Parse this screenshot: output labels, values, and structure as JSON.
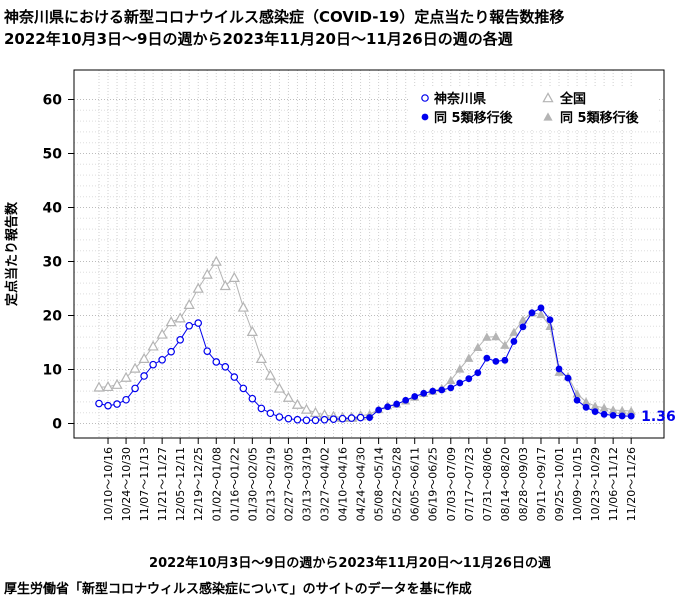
{
  "header": {
    "title_line1": "神奈川県における新型コロナウイルス感染症（COVID-19）定点当たり報告数推移",
    "title_line2": "2022年10月3日～9日の週から2023年11月20日～11月26日の週の各週"
  },
  "footer": {
    "source": "厚生労働省「新型コロナウィルス感染症について」のサイトのデータを基に作成"
  },
  "colors": {
    "kanagawa": "#0000ee",
    "national": "#b4b4b4",
    "grid": "#cfcfcf"
  },
  "chart_data": {
    "type": "line",
    "title": "神奈川県における新型コロナウイルス感染症（COVID-19）定点当たり報告数推移",
    "xlabel": "2022年10月3日～9日の週から2023年11月20日～11月26日の週",
    "ylabel": "定点当たり報告数",
    "ylim": [
      0,
      60
    ],
    "yticks": [
      0,
      10,
      20,
      30,
      40,
      50,
      60
    ],
    "grid": true,
    "legend_position": "top-right",
    "tick_labels": [
      "10/10～10/16",
      "10/24～10/30",
      "11/07～11/13",
      "11/21～11/27",
      "12/05～12/11",
      "12/19～12/25",
      "01/02～01/08",
      "01/16～01/22",
      "01/30～02/05",
      "02/13～02/19",
      "02/27～03/05",
      "03/13～03/19",
      "03/27～04/02",
      "04/10～04/16",
      "04/24～04/30",
      "05/08～05/14",
      "05/22～05/28",
      "06/05～06/11",
      "06/19～06/25",
      "07/03～07/09",
      "07/17～07/23",
      "07/31～08/06",
      "08/14～08/20",
      "08/28～09/03",
      "09/11～09/17",
      "09/25～10/01",
      "10/09～10/15",
      "10/23～10/29",
      "11/06～11/12",
      "11/20～11/26"
    ],
    "x_weeks": [
      "10/03～10/09",
      "10/10～10/16",
      "10/17～10/23",
      "10/24～10/30",
      "10/31～11/06",
      "11/07～11/13",
      "11/14～11/20",
      "11/21～11/27",
      "11/28～12/04",
      "12/05～12/11",
      "12/12～12/18",
      "12/19～12/25",
      "12/26～01/01",
      "01/02～01/08",
      "01/09～01/15",
      "01/16～01/22",
      "01/23～01/29",
      "01/30～02/05",
      "02/06～02/12",
      "02/13～02/19",
      "02/20～02/26",
      "02/27～03/05",
      "03/06～03/12",
      "03/13～03/19",
      "03/20～03/26",
      "03/27～04/02",
      "04/03～04/09",
      "04/10～04/16",
      "04/17～04/23",
      "04/24～04/30",
      "05/01～05/07",
      "05/08～05/14",
      "05/15～05/21",
      "05/22～05/28",
      "05/29～06/04",
      "06/05～06/11",
      "06/12～06/18",
      "06/19～06/25",
      "06/26～07/02",
      "07/03～07/09",
      "07/10～07/16",
      "07/17～07/23",
      "07/24～07/30",
      "07/31～08/06",
      "08/07～08/13",
      "08/14～08/20",
      "08/21～08/27",
      "08/28～09/03",
      "09/04～09/10",
      "09/11～09/17",
      "09/18～09/24",
      "09/25～10/01",
      "10/02～10/08",
      "10/09～10/15",
      "10/16～10/22",
      "10/23～10/29",
      "10/30～11/05",
      "11/06～11/12",
      "11/13～11/19",
      "11/20～11/26"
    ],
    "split_index": 30,
    "series": [
      {
        "name": "神奈川県",
        "name_after": "同 5類移行後",
        "values": [
          3.7,
          3.3,
          3.6,
          4.4,
          6.5,
          8.8,
          10.9,
          11.8,
          13.3,
          15.5,
          18.1,
          18.6,
          13.4,
          11.4,
          10.5,
          8.6,
          6.5,
          4.6,
          2.8,
          1.9,
          1.2,
          0.9,
          0.7,
          0.6,
          0.6,
          0.7,
          0.8,
          0.9,
          1.0,
          1.1,
          1.1,
          2.5,
          3.1,
          3.6,
          4.3,
          5.0,
          5.6,
          6.0,
          6.2,
          6.6,
          7.5,
          8.3,
          9.4,
          12.1,
          11.5,
          11.7,
          15.2,
          17.9,
          20.5,
          21.4,
          19.2,
          10.1,
          8.4,
          4.3,
          3.0,
          2.2,
          1.7,
          1.5,
          1.4,
          1.36
        ]
      },
      {
        "name": "全国",
        "name_after": "同 5類移行後",
        "values": [
          6.7,
          6.8,
          7.2,
          8.5,
          10.2,
          12.0,
          14.3,
          16.5,
          18.8,
          19.5,
          22.0,
          25.0,
          27.6,
          30.0,
          25.5,
          27.0,
          21.5,
          17.0,
          12.0,
          8.9,
          6.5,
          4.8,
          3.5,
          2.6,
          2.0,
          1.6,
          1.3,
          1.1,
          1.1,
          1.4,
          1.7,
          2.6,
          3.3,
          3.6,
          4.2,
          4.9,
          5.6,
          6.0,
          6.5,
          8.0,
          10.1,
          12.1,
          14.1,
          16.0,
          16.1,
          14.5,
          16.9,
          19.2,
          20.5,
          20.2,
          18.0,
          9.5,
          8.7,
          5.5,
          4.0,
          3.2,
          2.9,
          2.5,
          2.4,
          2.3
        ]
      }
    ],
    "annotation": "1.36"
  },
  "legend": {
    "kanagawa": "神奈川県",
    "national": "全国",
    "kanagawa_after": "同 5類移行後",
    "national_after": "同 5類移行後"
  }
}
